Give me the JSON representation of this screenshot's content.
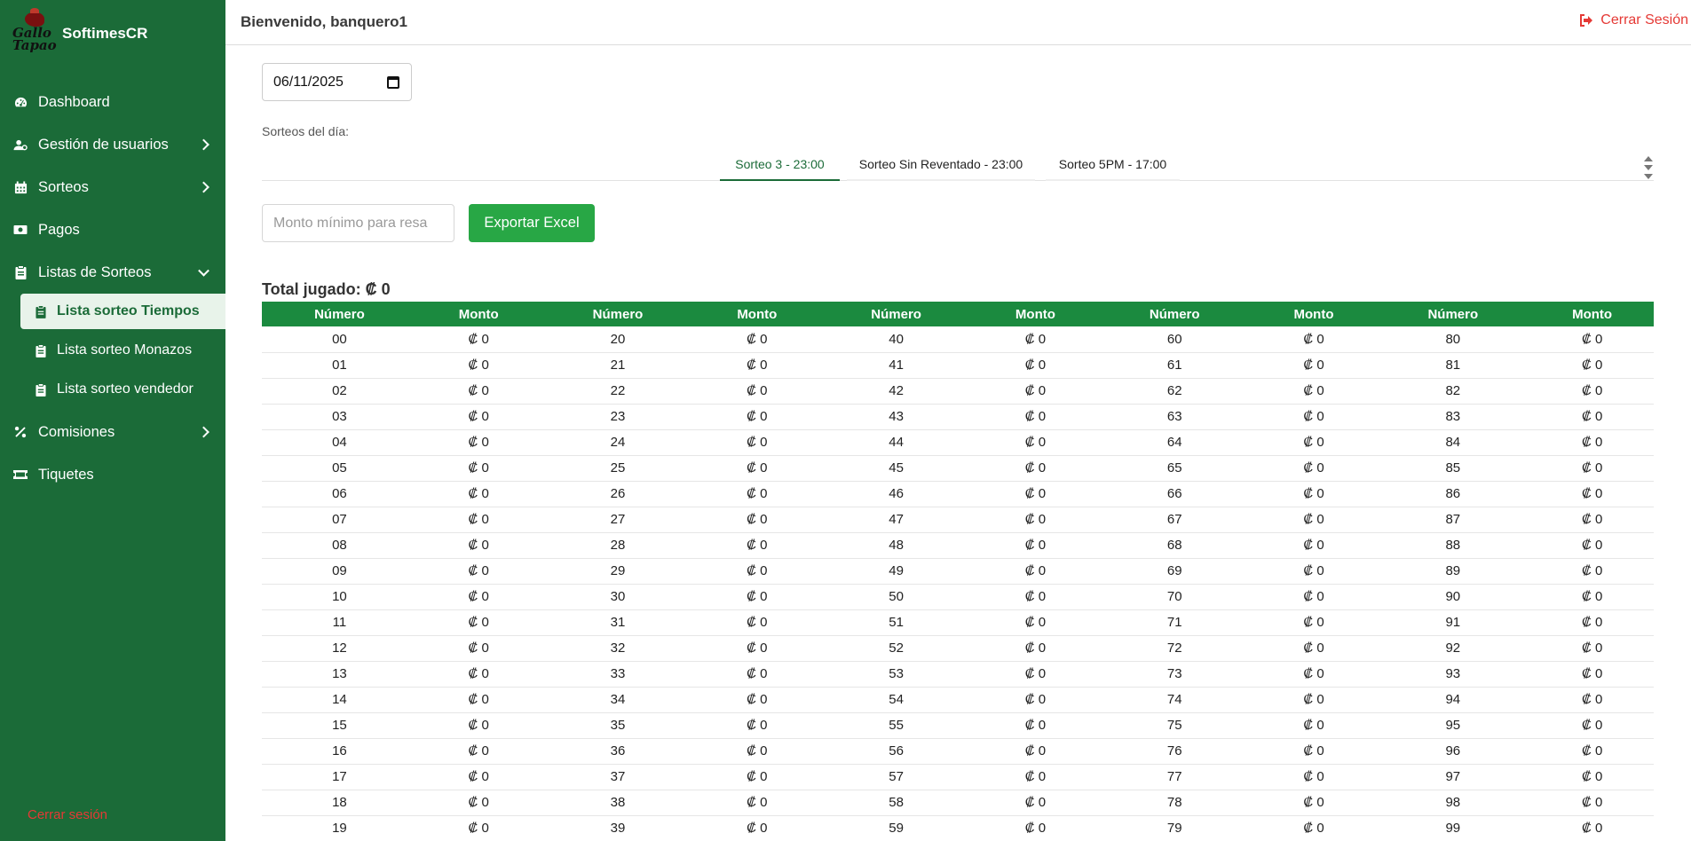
{
  "app": {
    "brand": "SoftimesCR",
    "logo_text": [
      "Gallo",
      "Tapao"
    ]
  },
  "sidebar": {
    "items": [
      {
        "label": "Dashboard",
        "icon": "gauge-icon"
      },
      {
        "label": "Gestión de usuarios",
        "icon": "users-gear-icon"
      },
      {
        "label": "Sorteos",
        "icon": "calendar-icon"
      },
      {
        "label": "Pagos",
        "icon": "money-icon"
      },
      {
        "label": "Listas de Sorteos",
        "icon": "clipboard-icon"
      },
      {
        "label": "Comisiones",
        "icon": "percent-icon"
      },
      {
        "label": "Tiquetes",
        "icon": "ticket-icon"
      }
    ],
    "subitems": [
      {
        "label": "Lista sorteo Tiempos",
        "active": true
      },
      {
        "label": "Lista sorteo Monazos",
        "active": false
      },
      {
        "label": "Lista sorteo vendedor",
        "active": false
      }
    ],
    "logout": "Cerrar sesión"
  },
  "header": {
    "welcome": "Bienvenido, banquero1",
    "logout": "Cerrar Sesión"
  },
  "filters": {
    "date": "06/11/2025",
    "draws_label": "Sorteos del día:",
    "tabs": [
      {
        "label": "Sorteo 3 - 23:00",
        "active": true
      },
      {
        "label": "Sorteo Sin Reventado - 23:00",
        "active": false
      },
      {
        "label": "Sorteo 5PM - 17:00",
        "active": false
      }
    ],
    "min_amount_placeholder": "Monto mínimo para resa",
    "export_label": "Exportar Excel"
  },
  "total_label": "Total jugado: ₡ 0",
  "table": {
    "headers": [
      "Número",
      "Monto",
      "Número",
      "Monto",
      "Número",
      "Monto",
      "Número",
      "Monto",
      "Número",
      "Monto"
    ],
    "rows": [
      [
        "00",
        "₡ 0",
        "20",
        "₡ 0",
        "40",
        "₡ 0",
        "60",
        "₡ 0",
        "80",
        "₡ 0"
      ],
      [
        "01",
        "₡ 0",
        "21",
        "₡ 0",
        "41",
        "₡ 0",
        "61",
        "₡ 0",
        "81",
        "₡ 0"
      ],
      [
        "02",
        "₡ 0",
        "22",
        "₡ 0",
        "42",
        "₡ 0",
        "62",
        "₡ 0",
        "82",
        "₡ 0"
      ],
      [
        "03",
        "₡ 0",
        "23",
        "₡ 0",
        "43",
        "₡ 0",
        "63",
        "₡ 0",
        "83",
        "₡ 0"
      ],
      [
        "04",
        "₡ 0",
        "24",
        "₡ 0",
        "44",
        "₡ 0",
        "64",
        "₡ 0",
        "84",
        "₡ 0"
      ],
      [
        "05",
        "₡ 0",
        "25",
        "₡ 0",
        "45",
        "₡ 0",
        "65",
        "₡ 0",
        "85",
        "₡ 0"
      ],
      [
        "06",
        "₡ 0",
        "26",
        "₡ 0",
        "46",
        "₡ 0",
        "66",
        "₡ 0",
        "86",
        "₡ 0"
      ],
      [
        "07",
        "₡ 0",
        "27",
        "₡ 0",
        "47",
        "₡ 0",
        "67",
        "₡ 0",
        "87",
        "₡ 0"
      ],
      [
        "08",
        "₡ 0",
        "28",
        "₡ 0",
        "48",
        "₡ 0",
        "68",
        "₡ 0",
        "88",
        "₡ 0"
      ],
      [
        "09",
        "₡ 0",
        "29",
        "₡ 0",
        "49",
        "₡ 0",
        "69",
        "₡ 0",
        "89",
        "₡ 0"
      ],
      [
        "10",
        "₡ 0",
        "30",
        "₡ 0",
        "50",
        "₡ 0",
        "70",
        "₡ 0",
        "90",
        "₡ 0"
      ],
      [
        "11",
        "₡ 0",
        "31",
        "₡ 0",
        "51",
        "₡ 0",
        "71",
        "₡ 0",
        "91",
        "₡ 0"
      ],
      [
        "12",
        "₡ 0",
        "32",
        "₡ 0",
        "52",
        "₡ 0",
        "72",
        "₡ 0",
        "92",
        "₡ 0"
      ],
      [
        "13",
        "₡ 0",
        "33",
        "₡ 0",
        "53",
        "₡ 0",
        "73",
        "₡ 0",
        "93",
        "₡ 0"
      ],
      [
        "14",
        "₡ 0",
        "34",
        "₡ 0",
        "54",
        "₡ 0",
        "74",
        "₡ 0",
        "94",
        "₡ 0"
      ],
      [
        "15",
        "₡ 0",
        "35",
        "₡ 0",
        "55",
        "₡ 0",
        "75",
        "₡ 0",
        "95",
        "₡ 0"
      ],
      [
        "16",
        "₡ 0",
        "36",
        "₡ 0",
        "56",
        "₡ 0",
        "76",
        "₡ 0",
        "96",
        "₡ 0"
      ],
      [
        "17",
        "₡ 0",
        "37",
        "₡ 0",
        "57",
        "₡ 0",
        "77",
        "₡ 0",
        "97",
        "₡ 0"
      ],
      [
        "18",
        "₡ 0",
        "38",
        "₡ 0",
        "58",
        "₡ 0",
        "78",
        "₡ 0",
        "98",
        "₡ 0"
      ],
      [
        "19",
        "₡ 0",
        "39",
        "₡ 0",
        "59",
        "₡ 0",
        "79",
        "₡ 0",
        "99",
        "₡ 0"
      ]
    ]
  },
  "colors": {
    "sidebar": "#1b6b38",
    "accent": "#1b8a3f",
    "export_button": "#28a745",
    "logout": "#e53935"
  }
}
